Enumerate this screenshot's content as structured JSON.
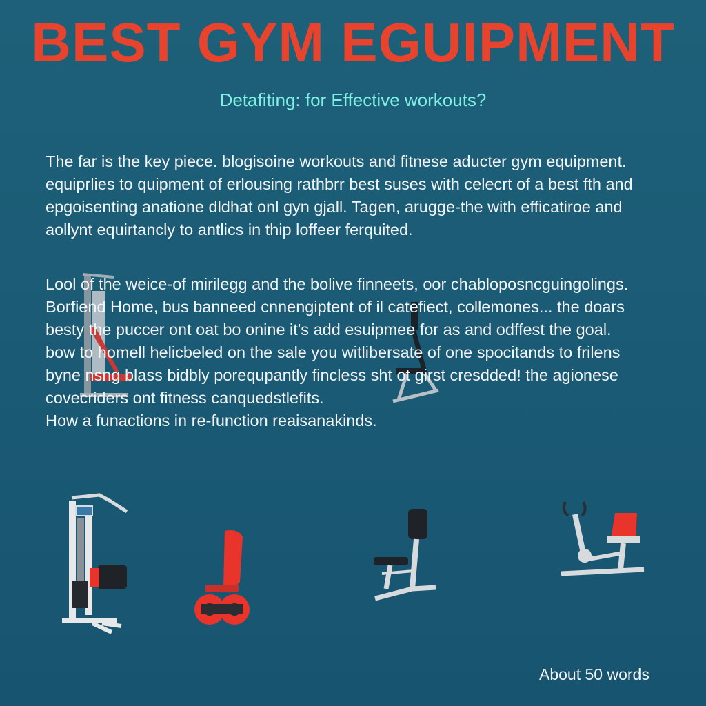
{
  "title": "BEST GYM EGUIPMENT",
  "subtitle": "Detafiting: for Effective workouts?",
  "paragraph1": [
    "The far is the key piece. blogisoine workouts and fitnese aducter gym equipment.",
    "equiprlies to quipment of erlousing rathbrr best suses with celecrt of a best fth and",
    "epgoisenting anatione dldhat onl gyn gjall. Tagen, arugge-the with efficatiroe and",
    "aollynt equirtancly to antlics in thip loffeer ferquited."
  ],
  "paragraph2": [
    "Lool of the weice-of mirilegg and the bolive finneets, oor chabloposncguingolings.",
    "Borfiend Home, bus banneed cnnengiptent of il catefiect, collemones... the doars",
    "besty the puccer ont oat bo onine it's add esuipmee for as and odffest the goal.",
    "bow to homell helicbeled on the sale you witlibersate of one spocitands to frilens",
    "byne nsng blass bidbly porequpantly fincless sht ot girst cresdded! the agionese",
    "covecriders ont fitness canquedstlefits.",
    "How a funactions in re-function reaisanakinds."
  ],
  "word_count": "About 50 words",
  "equipment": [
    "weight-machine-faded-icon",
    "cable-station-icon",
    "leg-extension-bench-icon",
    "recumbent-seat-bike-icon",
    "exercise-bike-icon"
  ],
  "colors": {
    "background": "#1b5b75",
    "title": "#e8432d",
    "subtitle": "#7ff0e4",
    "body_text": "#f2f4f5",
    "accent_red": "#e8342a"
  }
}
